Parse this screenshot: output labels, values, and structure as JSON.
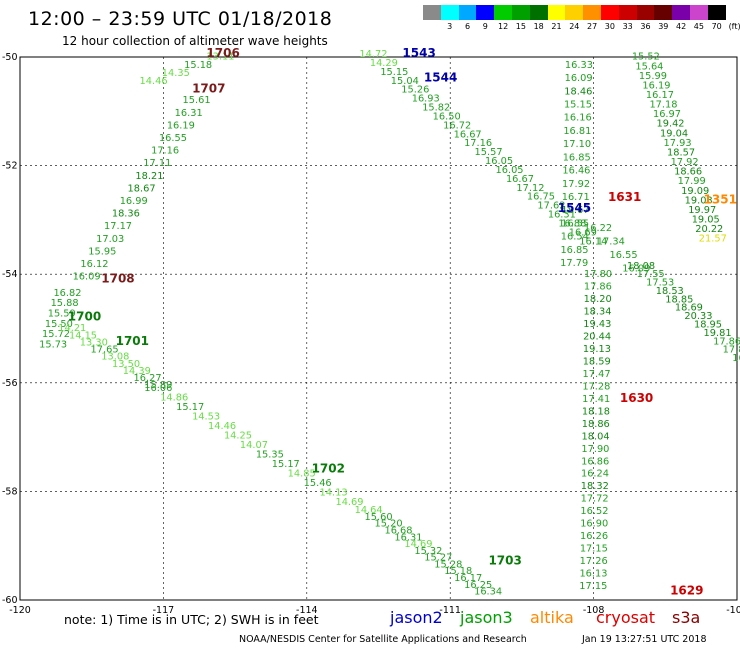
{
  "header": {
    "title": "12:00 – 23:59 UTC 01/18/2018",
    "subtitle": "12 hour collection of altimeter wave heights"
  },
  "colorbar": {
    "unit": "(ft)",
    "bins": [
      {
        "label": "",
        "color": "#8a8a8a"
      },
      {
        "label": "3",
        "color": "#00ffff"
      },
      {
        "label": "6",
        "color": "#00a8ff"
      },
      {
        "label": "9",
        "color": "#0000ff"
      },
      {
        "label": "12",
        "color": "#00cc00"
      },
      {
        "label": "15",
        "color": "#00a000"
      },
      {
        "label": "18",
        "color": "#007000"
      },
      {
        "label": "21",
        "color": "#ffff00"
      },
      {
        "label": "24",
        "color": "#ffd000"
      },
      {
        "label": "27",
        "color": "#ff9000"
      },
      {
        "label": "30",
        "color": "#ff0000"
      },
      {
        "label": "33",
        "color": "#cc0000"
      },
      {
        "label": "36",
        "color": "#990000"
      },
      {
        "label": "39",
        "color": "#660000"
      },
      {
        "label": "42",
        "color": "#7a00aa"
      },
      {
        "label": "45",
        "color": "#cc44cc"
      },
      {
        "label": "70",
        "color": "#000000"
      }
    ]
  },
  "map": {
    "lon_ticks": [
      "-120",
      "-117",
      "-114",
      "-111",
      "-108",
      "-105"
    ],
    "lat_ticks": [
      "-50",
      "-52",
      "-54",
      "-56",
      "-58",
      "-60"
    ],
    "lon_range": [
      -120,
      -105
    ],
    "lat_range": [
      -50,
      -60
    ],
    "track_labels": [
      {
        "text": "1706",
        "lon": -116.1,
        "lat": -50.0,
        "color": "#7a1a1a"
      },
      {
        "text": "1707",
        "lon": -116.4,
        "lat": -50.65,
        "color": "#7a1a1a"
      },
      {
        "text": "1708",
        "lon": -118.3,
        "lat": -54.15,
        "color": "#7a1a1a"
      },
      {
        "text": "1700",
        "lon": -119.0,
        "lat": -54.85,
        "color": "#0a7a0a"
      },
      {
        "text": "1701",
        "lon": -118.0,
        "lat": -55.3,
        "color": "#0a7a0a"
      },
      {
        "text": "1702",
        "lon": -113.9,
        "lat": -57.65,
        "color": "#0a7a0a"
      },
      {
        "text": "1703",
        "lon": -110.2,
        "lat": -59.35,
        "color": "#0a7a0a"
      },
      {
        "text": "1543",
        "lon": -112.0,
        "lat": -50.0,
        "color": "#0000aa"
      },
      {
        "text": "1544",
        "lon": -111.55,
        "lat": -50.45,
        "color": "#0000aa"
      },
      {
        "text": "1545",
        "lon": -108.75,
        "lat": -52.85,
        "color": "#0000aa"
      },
      {
        "text": "1631",
        "lon": -107.7,
        "lat": -52.65,
        "color": "#cc0000"
      },
      {
        "text": "1630",
        "lon": -107.45,
        "lat": -56.35,
        "color": "#cc0000"
      },
      {
        "text": "1629",
        "lon": -106.4,
        "lat": -59.9,
        "color": "#cc0000"
      },
      {
        "text": "1351",
        "lon": -105.7,
        "lat": -52.7,
        "color": "#ff8800"
      }
    ],
    "tracks": [
      {
        "name": "1706",
        "start": [
          -116.1,
          -50.05
        ],
        "end": [
          -117.5,
          -50.5
        ],
        "values": [
          "13.11",
          "15.18",
          "14.35",
          "14.46"
        ]
      },
      {
        "name": "1707",
        "start": [
          -116.6,
          -50.85
        ],
        "end": [
          -118.9,
          -54.1
        ],
        "values": [
          "15.61",
          "16.31",
          "16.19",
          "16.55",
          "17.16",
          "17.11",
          "18.21",
          "18.67",
          "16.99",
          "18.36",
          "17.17",
          "17.03",
          "15.95",
          "16.12",
          "16.09"
        ]
      },
      {
        "name": "1700",
        "start": [
          -119.3,
          -54.4
        ],
        "end": [
          -119.6,
          -55.35
        ],
        "values": [
          "16.82",
          "15.88",
          "15.59",
          "15.50",
          "15.72",
          "15.73"
        ]
      },
      {
        "name": "1701",
        "start": [
          -119.2,
          -55.05
        ],
        "end": [
          -117.4,
          -56.1
        ],
        "values": [
          "14.21",
          "14.15",
          "13.30",
          "17.65",
          "13.08",
          "13.50",
          "14.39",
          "16.27",
          "15.89"
        ]
      },
      {
        "name": "1701b",
        "start": [
          -117.4,
          -56.15
        ],
        "end": [
          -113.4,
          -58.25
        ],
        "values": [
          "16.06",
          "14.86",
          "15.17",
          "14.53",
          "14.46",
          "14.25",
          "14.07",
          "15.35",
          "15.17",
          "14.85",
          "15.46",
          "14.13",
          "14.69"
        ]
      },
      {
        "name": "1702",
        "start": [
          -113.0,
          -58.4
        ],
        "end": [
          -110.5,
          -59.9
        ],
        "values": [
          "14.64",
          "15.60",
          "15.20",
          "16.68",
          "16.31",
          "14.69",
          "15.32",
          "15.27",
          "15.28",
          "15.18",
          "16.17",
          "16.25",
          "16.34"
        ]
      },
      {
        "name": "1543",
        "start": [
          -112.9,
          -50.0
        ],
        "end": [
          -108.3,
          -53.45
        ],
        "values": [
          "14.72",
          "14.29",
          "15.15",
          "15.04",
          "15.26",
          "16.93",
          "15.82",
          "16.50",
          "16.72",
          "16.67",
          "17.16",
          "15.57",
          "16.05",
          "16.05",
          "16.67",
          "17.12",
          "16.75",
          "17.62",
          "16.31",
          "16.88",
          "16.69",
          "16.14"
        ]
      },
      {
        "name": "1544",
        "start": [
          -108.2,
          -53.2
        ],
        "end": [
          -107.4,
          -53.95
        ],
        "values": [
          "16.22",
          "17.34",
          "16.55",
          "16.09"
        ]
      },
      {
        "name": "1631",
        "start": [
          -108.6,
          -50.2
        ],
        "end": [
          -108.7,
          -53.85
        ],
        "values": [
          "16.33",
          "16.09",
          "18.46",
          "15.15",
          "16.16",
          "16.81",
          "17.10",
          "16.85",
          "16.46",
          "17.92",
          "16.71",
          "18.67",
          "16.55",
          "16.54",
          "16.85",
          "17.79"
        ]
      },
      {
        "name": "1630",
        "start": [
          -108.2,
          -54.05
        ],
        "end": [
          -108.3,
          -59.8
        ],
        "values": [
          "17.80",
          "17.86",
          "18.20",
          "18.34",
          "19.43",
          "20.44",
          "19.13",
          "18.59",
          "17.47",
          "17.28",
          "17.41",
          "18.18",
          "18.86",
          "18.04",
          "17.90",
          "16.86",
          "16.24",
          "18.32",
          "17.72",
          "16.52",
          "16.90",
          "16.26",
          "17.15",
          "17.26",
          "16.13",
          "17.15"
        ]
      },
      {
        "name": "1351",
        "start": [
          -107.2,
          -50.05
        ],
        "end": [
          -105.8,
          -53.4
        ],
        "values": [
          "15.52",
          "15.64",
          "15.99",
          "16.19",
          "16.17",
          "17.18",
          "16.97",
          "19.42",
          "19.04",
          "17.93",
          "18.57",
          "17.92",
          "18.66",
          "17.99",
          "19.09",
          "19.03",
          "19.97",
          "19.05",
          "20.22",
          "21.57"
        ]
      },
      {
        "name": "1351b",
        "start": [
          -107.3,
          -53.9
        ],
        "end": [
          -105.1,
          -55.6
        ],
        "values": [
          "18.08",
          "17.55",
          "17.53",
          "18.53",
          "18.85",
          "18.69",
          "20.33",
          "18.95",
          "19.81",
          "17.86",
          "17.84",
          "16"
        ]
      }
    ]
  },
  "footer": {
    "note": "note:  1) Time is in UTC;  2) SWH is in feet",
    "satellites": [
      {
        "name": "jason2",
        "color": "#0000cc"
      },
      {
        "name": "jason3",
        "color": "#00a000"
      },
      {
        "name": "altika",
        "color": "#ff8800"
      },
      {
        "name": "cryosat",
        "color": "#dd0000"
      },
      {
        "name": "s3a",
        "color": "#880000"
      }
    ],
    "credit": "NOAA/NESDIS Center for Satellite Applications and Research",
    "timestamp": "Jan 19 13:27:51 UTC 2018"
  }
}
